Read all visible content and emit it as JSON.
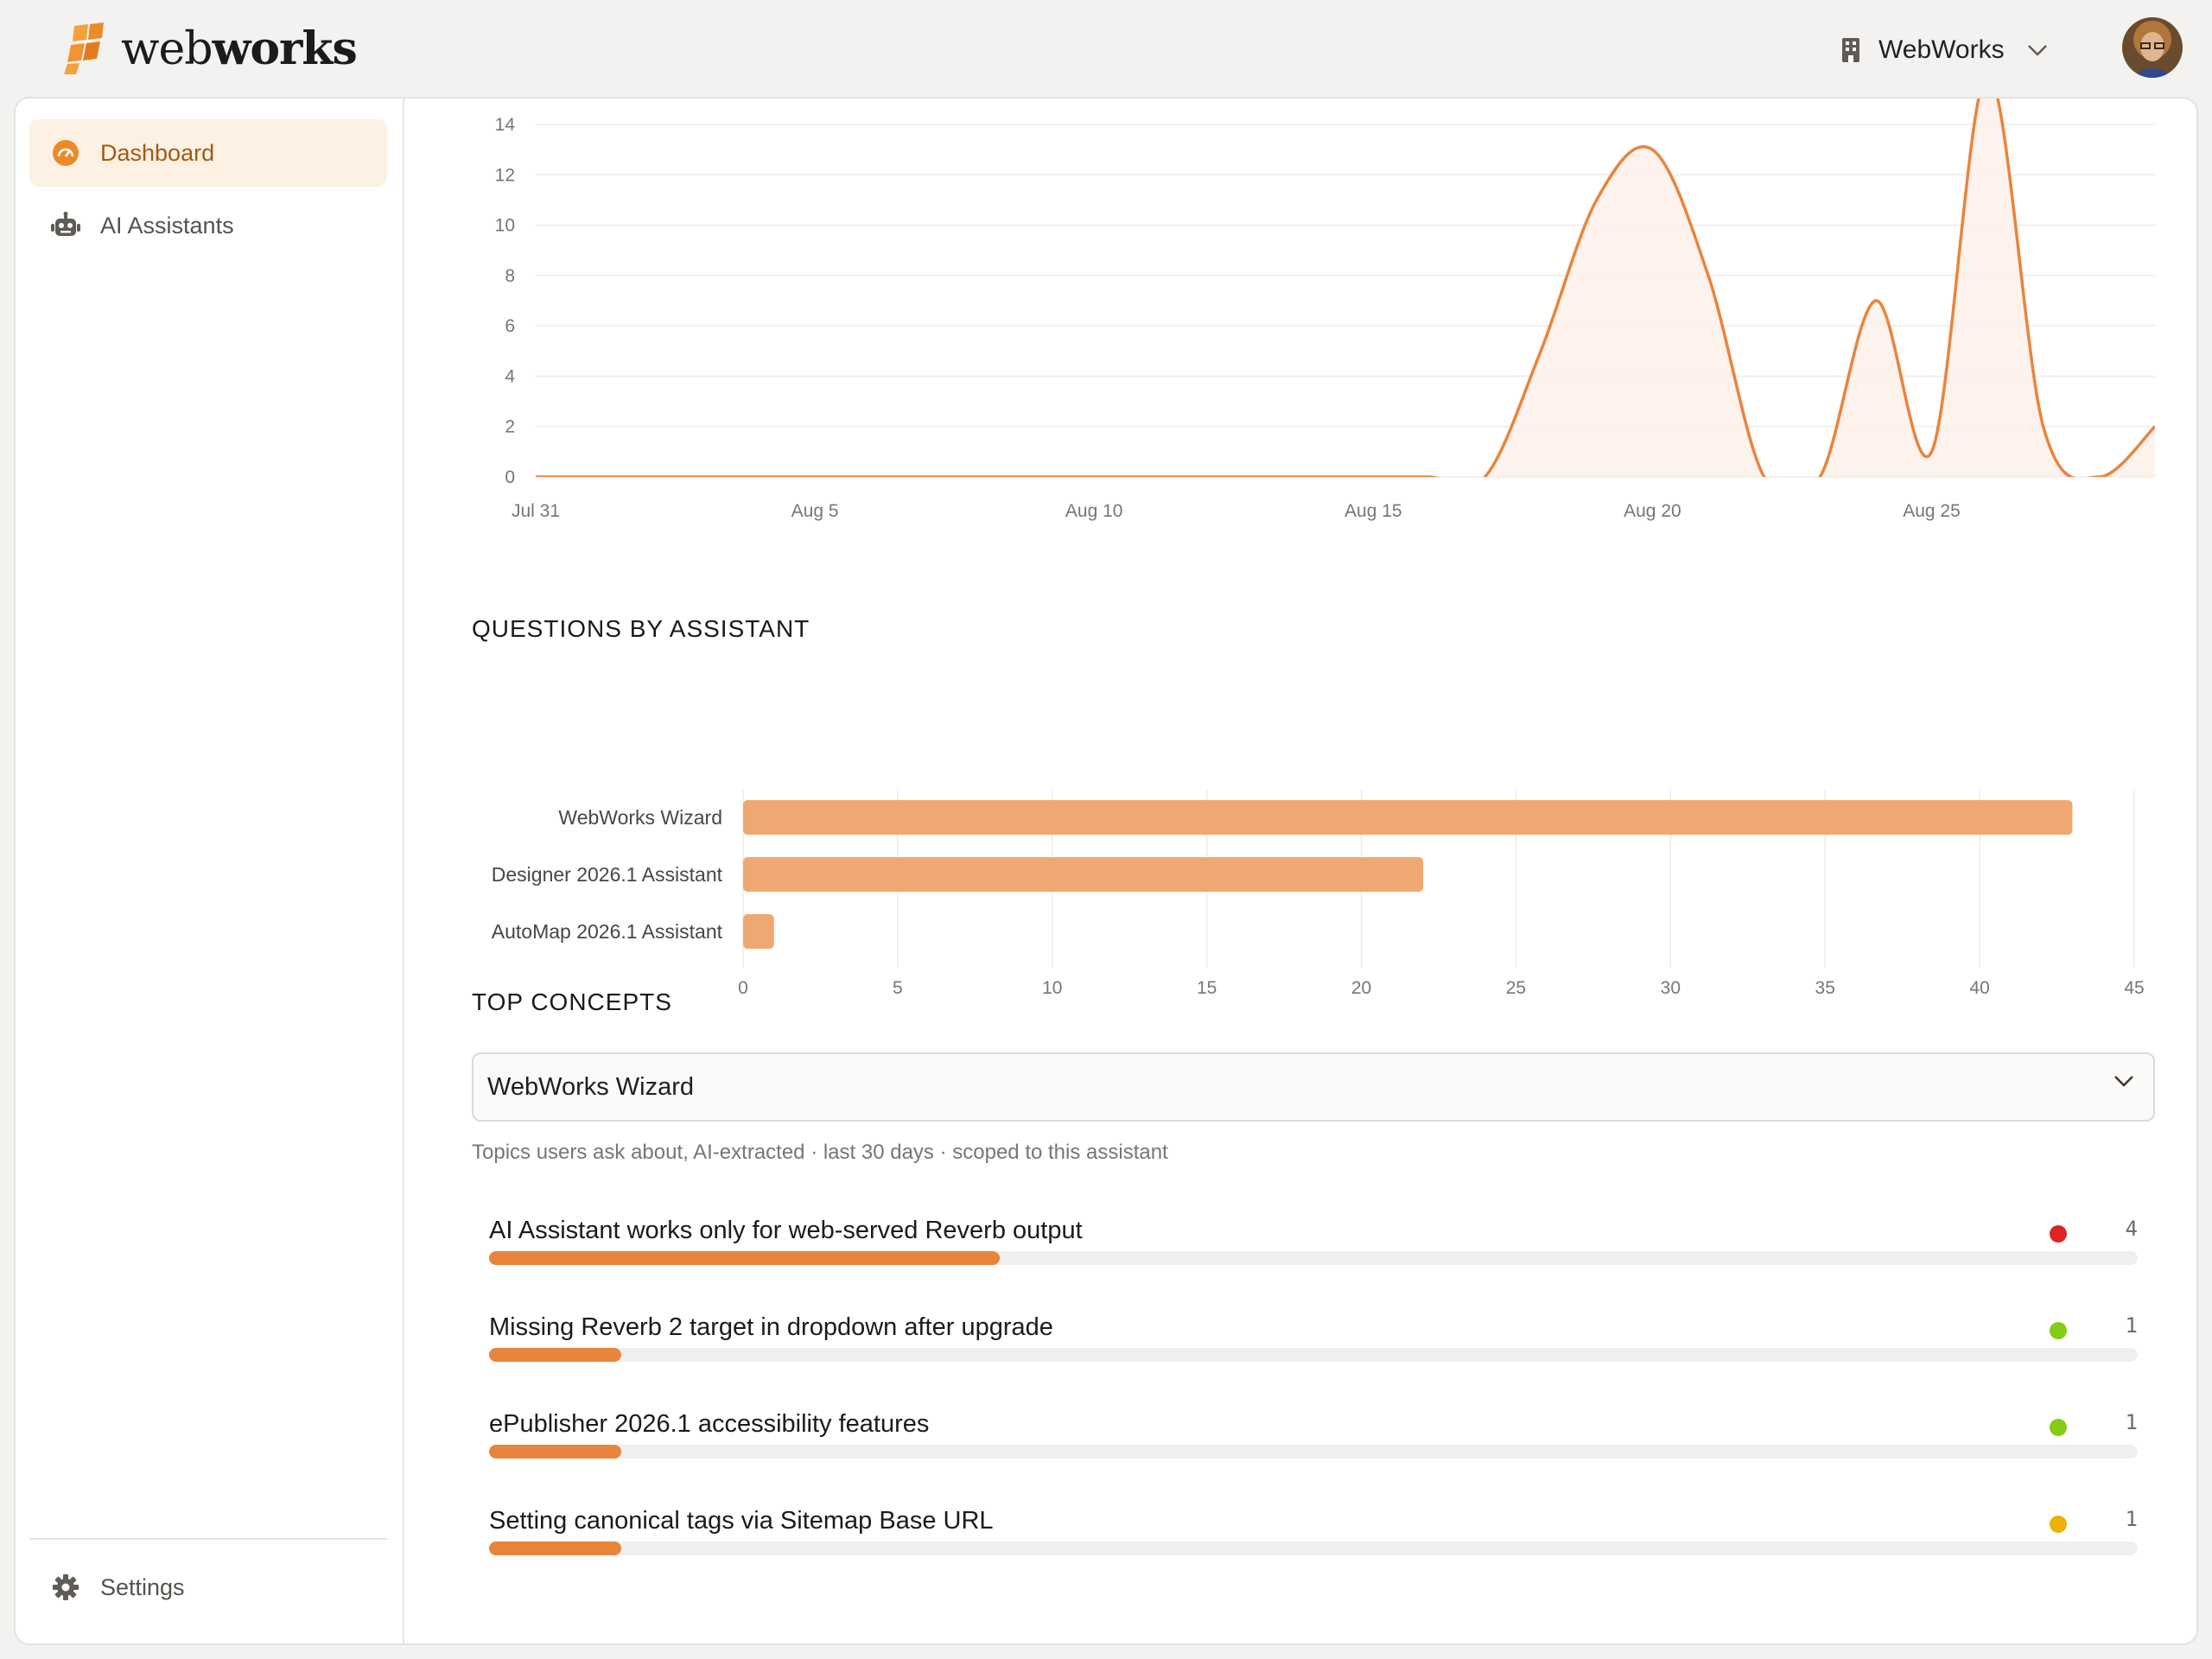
{
  "brand": {
    "name_light": "web",
    "name_bold": "works"
  },
  "org": {
    "name": "WebWorks"
  },
  "sidebar": {
    "items": [
      {
        "label": "Dashboard",
        "icon": "gauge-icon",
        "active": true
      },
      {
        "label": "AI Assistants",
        "icon": "robot-icon",
        "active": false
      }
    ],
    "settings_label": "Settings"
  },
  "colors": {
    "accent": "#e9843d",
    "bar": "#efa871",
    "active_bg": "#fdf1e4",
    "active_text": "#a25a12"
  },
  "line_chart": {
    "chart_data": {
      "type": "area",
      "x": [
        "Jul 31",
        "Aug 1",
        "Aug 2",
        "Aug 3",
        "Aug 4",
        "Aug 5",
        "Aug 6",
        "Aug 7",
        "Aug 8",
        "Aug 9",
        "Aug 10",
        "Aug 11",
        "Aug 12",
        "Aug 13",
        "Aug 14",
        "Aug 15",
        "Aug 16",
        "Aug 17",
        "Aug 18",
        "Aug 19",
        "Aug 20",
        "Aug 21",
        "Aug 22",
        "Aug 23",
        "Aug 24",
        "Aug 25",
        "Aug 26",
        "Aug 27",
        "Aug 28",
        "Aug 29"
      ],
      "series": [
        {
          "values": [
            0,
            0,
            0,
            0,
            0,
            0,
            0,
            0,
            0,
            0,
            0,
            0,
            0,
            0,
            0,
            0,
            0,
            0,
            5,
            11,
            13,
            8,
            0,
            0,
            7,
            1,
            16,
            2,
            0,
            2
          ]
        }
      ],
      "x_tick_labels": [
        "Jul 31",
        "Aug 5",
        "Aug 10",
        "Aug 15",
        "Aug 20",
        "Aug 25"
      ],
      "y_ticks": [
        0,
        2,
        4,
        6,
        8,
        10,
        12,
        14
      ],
      "ylim": [
        0,
        14
      ],
      "grid": true
    }
  },
  "questions_by_assistant": {
    "title": "QUESTIONS BY ASSISTANT",
    "chart_data": {
      "type": "bar",
      "orientation": "horizontal",
      "categories": [
        "WebWorks Wizard",
        "Designer 2026.1 Assistant",
        "AutoMap 2026.1 Assistant"
      ],
      "values": [
        43,
        22,
        1
      ],
      "x_ticks": [
        0,
        5,
        10,
        15,
        20,
        25,
        30,
        35,
        40,
        45
      ],
      "xlim": [
        0,
        45
      ],
      "grid": true
    }
  },
  "top_concepts": {
    "title": "TOP CONCEPTS",
    "selected_assistant": "WebWorks Wizard",
    "caption": "Topics users ask about, AI-extracted · last 30 days · scoped to this assistant",
    "max_count": 4,
    "items": [
      {
        "label": "AI Assistant works only for web-served Reverb output",
        "count": "4",
        "value": 4,
        "fill_fraction": 0.31,
        "status_color": "#dc2626"
      },
      {
        "label": "Missing Reverb 2 target in dropdown after upgrade",
        "count": "1",
        "value": 1,
        "fill_fraction": 0.08,
        "status_color": "#84cc16"
      },
      {
        "label": "ePublisher 2026.1 accessibility features",
        "count": "1",
        "value": 1,
        "fill_fraction": 0.08,
        "status_color": "#84cc16"
      },
      {
        "label": "Setting canonical tags via Sitemap Base URL",
        "count": "1",
        "value": 1,
        "fill_fraction": 0.08,
        "status_color": "#eab308"
      }
    ]
  }
}
